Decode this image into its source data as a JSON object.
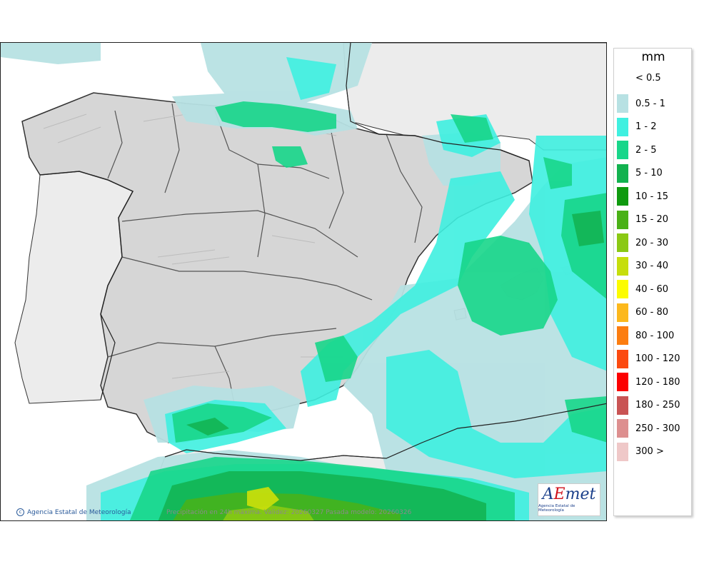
{
  "map": {
    "credit": "Agencia Estatal de Meteorología",
    "caption": "Precipitación en 24h máxima. Validez: 20260327 Pasada modelo: 20260326"
  },
  "logo": {
    "wordmark_a": "A",
    "wordmark_e": "E",
    "wordmark_rest": "met",
    "subtitle": "Agencia Estatal de Meteorología"
  },
  "legend": {
    "unit": "mm",
    "below_min": "< 0.5",
    "classes": [
      {
        "label": "0.5 - 1",
        "color": "#b7e1e3"
      },
      {
        "label": "1 - 2",
        "color": "#3ff0e0"
      },
      {
        "label": "2 - 5",
        "color": "#18d68a"
      },
      {
        "label": "5 - 10",
        "color": "#12b24f"
      },
      {
        "label": "10 - 15",
        "color": "#0f9a0f"
      },
      {
        "label": "15 - 20",
        "color": "#4ab117"
      },
      {
        "label": "20 - 30",
        "color": "#8ac914"
      },
      {
        "label": "30 - 40",
        "color": "#c6de0c"
      },
      {
        "label": "40 - 60",
        "color": "#fcfc00"
      },
      {
        "label": "60 - 80",
        "color": "#fcb81c"
      },
      {
        "label": "80 - 100",
        "color": "#fc7d10"
      },
      {
        "label": "100 - 120",
        "color": "#fc4a10"
      },
      {
        "label": "120 - 180",
        "color": "#fc0000"
      },
      {
        "label": "180 - 250",
        "color": "#c95454"
      },
      {
        "label": "250 - 300",
        "color": "#dd8f8f"
      },
      {
        "label": "300 >",
        "color": "#efc8c8"
      }
    ]
  }
}
